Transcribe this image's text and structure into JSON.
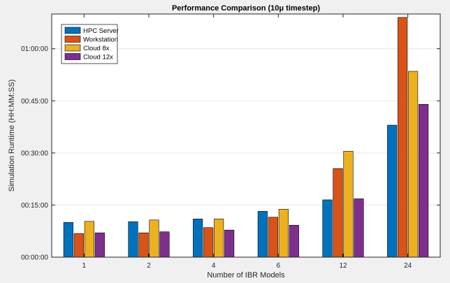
{
  "chart_data": {
    "type": "bar",
    "title": "Performance Comparison (10μ timestep)",
    "xlabel": "Number of IBR Models",
    "ylabel": "Simulation Runtime (HH:MM:SS)",
    "categories": [
      "1",
      "2",
      "4",
      "6",
      "12",
      "24"
    ],
    "y_unit": "minutes",
    "ylim": [
      0,
      70
    ],
    "yticks": [
      0,
      15,
      30,
      45,
      60
    ],
    "ytick_labels": [
      "00:00:00",
      "00:15:00",
      "00:30:00",
      "00:45:00",
      "01:00:00"
    ],
    "grid": true,
    "legend_position": "top-left",
    "series": [
      {
        "name": "HPC Server",
        "color": "#0072BD",
        "values": [
          10.0,
          10.2,
          11.0,
          13.2,
          16.5,
          38.0
        ]
      },
      {
        "name": "Workstation",
        "color": "#D95319",
        "values": [
          6.8,
          7.0,
          8.5,
          11.5,
          25.5,
          69.0
        ]
      },
      {
        "name": "Cloud 8x",
        "color": "#EDB120",
        "values": [
          10.3,
          10.7,
          11.0,
          13.8,
          30.5,
          53.5
        ]
      },
      {
        "name": "Cloud 12x",
        "color": "#7E2F8E",
        "values": [
          7.0,
          7.3,
          7.8,
          9.2,
          16.8,
          44.0
        ]
      }
    ]
  }
}
